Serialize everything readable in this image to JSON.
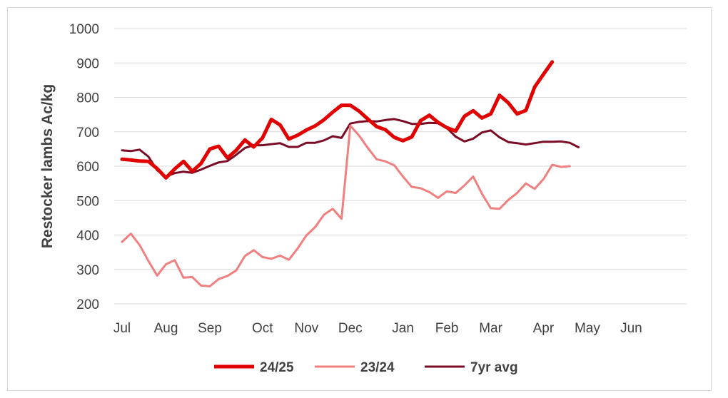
{
  "chart_data": {
    "type": "line",
    "ylabel": "Restocker lambs Ac/kg",
    "xlabel": "",
    "ylim": [
      200,
      1000
    ],
    "yticks": [
      200,
      300,
      400,
      500,
      600,
      700,
      800,
      900,
      1000
    ],
    "grid": true,
    "legend_position": "bottom",
    "month_labels": [
      {
        "label": "Jul",
        "week": 0
      },
      {
        "label": "Aug",
        "week": 5
      },
      {
        "label": "Sep",
        "week": 10
      },
      {
        "label": "Oct",
        "week": 16
      },
      {
        "label": "Nov",
        "week": 21
      },
      {
        "label": "Dec",
        "week": 26
      },
      {
        "label": "Jan",
        "week": 32
      },
      {
        "label": "Feb",
        "week": 37
      },
      {
        "label": "Mar",
        "week": 42
      },
      {
        "label": "Apr",
        "week": 48
      },
      {
        "label": "May",
        "week": 53
      },
      {
        "label": "Jun",
        "week": 58
      }
    ],
    "series": [
      {
        "name": "7yr avg",
        "color": "#7b0c25",
        "values": [
          646,
          644,
          648,
          628,
          588,
          570,
          580,
          584,
          581,
          590,
          601,
          611,
          615,
          633,
          653,
          661,
          661,
          664,
          667,
          656,
          656,
          668,
          668,
          675,
          687,
          682,
          724,
          729,
          731,
          730,
          734,
          737,
          731,
          723,
          723,
          726,
          725,
          711,
          686,
          672,
          680,
          698,
          704,
          684,
          670,
          667,
          663,
          667,
          671,
          671,
          672,
          668,
          655
        ]
      },
      {
        "name": "23/24",
        "color": "#f08080",
        "values": [
          380,
          404,
          371,
          325,
          282,
          315,
          327,
          276,
          278,
          253,
          251,
          272,
          281,
          297,
          339,
          356,
          336,
          331,
          340,
          328,
          361,
          399,
          423,
          459,
          476,
          447,
          718,
          689,
          653,
          620,
          614,
          603,
          570,
          540,
          536,
          525,
          508,
          527,
          522,
          544,
          570,
          520,
          478,
          476,
          502,
          522,
          550,
          534,
          562,
          604,
          598,
          600
        ]
      },
      {
        "name": "24/25",
        "color": "#e00000",
        "values": [
          620,
          618,
          615,
          614,
          593,
          566,
          592,
          614,
          585,
          608,
          650,
          658,
          624,
          646,
          676,
          656,
          682,
          736,
          720,
          679,
          690,
          705,
          717,
          735,
          757,
          777,
          777,
          760,
          737,
          715,
          706,
          684,
          674,
          685,
          732,
          748,
          727,
          712,
          702,
          745,
          761,
          740,
          752,
          806,
          784,
          752,
          762,
          830,
          867,
          903
        ]
      }
    ]
  }
}
